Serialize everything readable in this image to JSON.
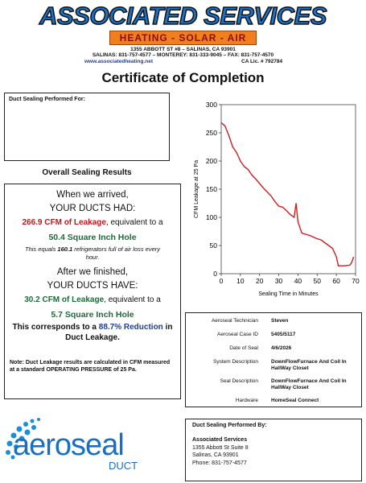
{
  "header": {
    "company": "ASSOCIATED SERVICES",
    "tagline": "HEATING - SOLAR - AIR",
    "address": "1355 ABBOTT ST #8 – SALINAS, CA 93901",
    "phones": "SALINAS: 831-757-4577 – MONTEREY: 831-333-9045 – FAX: 831-757-4570",
    "website": "www.associatedheating.net",
    "license": "CA Lic. # 792784"
  },
  "title": "Certificate of Completion",
  "performed_for": {
    "label": "Duct Sealing Performed For:"
  },
  "results": {
    "heading": "Overall Sealing Results",
    "arrived": "When we arrived,",
    "had": "YOUR DUCTS HAD:",
    "before_leakage": "266.9 CFM of Leakage",
    "equivalent_1": ", equivalent to a",
    "before_hole": "50.4 Square Inch Hole",
    "equals_pre": "This equals ",
    "equals_num": "160.1",
    "equals_post": " refrigerators full of air loss every hour.",
    "finished": "After we finished,",
    "have": "YOUR DUCTS HAVE:",
    "after_leakage": "30.2 CFM of Leakage",
    "equivalent_2": ", equivalent to a",
    "after_hole": "5.7 Square Inch Hole",
    "corresponds_pre": "This corresponds to a ",
    "reduction": "88.7% Reduction",
    "corresponds_post": " in Duct Leakage.",
    "note": "Note: Duct Leakage results are calculated in CFM measured at a standard OPERATING PRESSURE of 25 Pa."
  },
  "chart_data": {
    "type": "line",
    "x_label": "Sealing Time in Minutes",
    "y_label": "CFM Leakage at 25 Pa",
    "x": [
      0,
      2,
      4,
      6,
      8,
      10,
      12,
      14,
      16,
      18,
      20,
      22,
      24,
      26,
      28,
      30,
      32,
      34,
      36,
      38,
      39,
      40,
      42,
      44,
      46,
      48,
      50,
      52,
      54,
      56,
      58,
      60,
      61,
      64,
      67,
      68,
      69
    ],
    "values": [
      268,
      262,
      245,
      225,
      215,
      200,
      190,
      185,
      175,
      168,
      160,
      152,
      145,
      138,
      128,
      120,
      118,
      112,
      105,
      100,
      125,
      92,
      72,
      70,
      68,
      65,
      62,
      60,
      55,
      50,
      45,
      30,
      14,
      14,
      15,
      20,
      30
    ],
    "color": "#cc1f1f",
    "xlim": [
      0,
      70
    ],
    "ylim": [
      0,
      300
    ],
    "xticks": [
      0,
      10,
      20,
      30,
      40,
      50,
      60,
      70
    ],
    "yticks": [
      0,
      50,
      100,
      150,
      200,
      250,
      300
    ]
  },
  "info": {
    "rows": [
      [
        "Aeroseal Technician",
        "Steven"
      ],
      [
        "Aeroseal Case ID",
        "5405/5117"
      ],
      [
        "Date of Seal",
        "4/6/2026"
      ],
      [
        "System Description",
        "DownFlowFurnace And Coil In HallWay Closet"
      ],
      [
        "Seal Description",
        "DownFlowFurnace And Coil In HallWay Closet"
      ],
      [
        "Hardware",
        "HomeSeal Connect"
      ]
    ]
  },
  "logo": {
    "brand": "aeroseal",
    "product": "DUCT"
  },
  "performed_by": {
    "label": "Duct Sealing Performed By:",
    "name": "Associated Services",
    "street": "1355 Abbott St Suite 8",
    "city": "Salinas, CA 93901",
    "phone": "Phone: 831-757-4577"
  }
}
